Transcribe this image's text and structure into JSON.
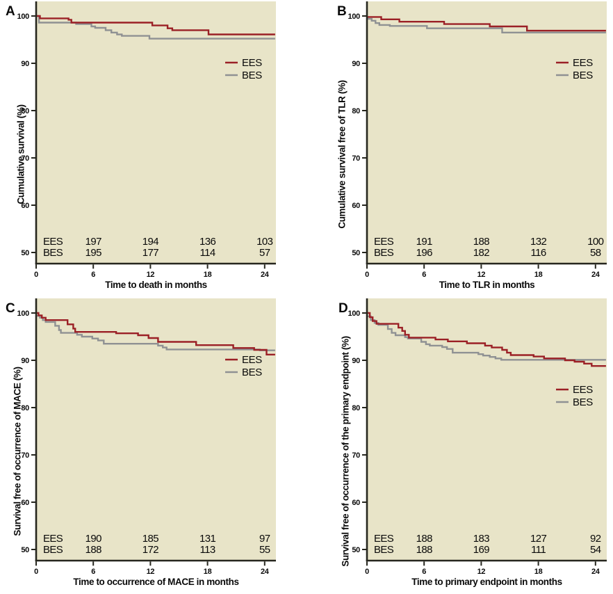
{
  "figure": {
    "background": "#FFFFFF",
    "plot_background": "#E8E4C8",
    "axis_color": "#26261E",
    "text_color": "#0A0A0A",
    "series_colors": {
      "EES": "#9B2026",
      "BES": "#8F9193"
    }
  },
  "chart_data": [
    {
      "type": "line",
      "panel_letter": "A",
      "ylabel": "Cumulative survival (%)",
      "xlabel": "Time to death in months",
      "x_ticks": [
        0,
        6,
        12,
        18,
        24
      ],
      "y_ticks": [
        50,
        60,
        70,
        80,
        90,
        100
      ],
      "xlim": [
        0,
        25.2
      ],
      "ylim": [
        47.6,
        103.1
      ],
      "step_mode": "after",
      "legend_position": "upper-right",
      "grid": false,
      "series": [
        {
          "name": "EES",
          "color": "#9B2026",
          "points": [
            [
              0,
              100
            ],
            [
              0.4,
              99.5
            ],
            [
              3.4,
              99.2
            ],
            [
              3.7,
              98.6
            ],
            [
              12.2,
              98.0
            ],
            [
              13.8,
              97.4
            ],
            [
              14.3,
              97.0
            ],
            [
              18.1,
              96.1
            ]
          ]
        },
        {
          "name": "BES",
          "color": "#8F9193",
          "points": [
            [
              0,
              100
            ],
            [
              0.3,
              98.6
            ],
            [
              4.2,
              98.3
            ],
            [
              5.8,
              97.8
            ],
            [
              6.2,
              97.5
            ],
            [
              7.3,
              97.0
            ],
            [
              7.9,
              96.5
            ],
            [
              8.5,
              96.1
            ],
            [
              9.0,
              95.8
            ],
            [
              11.9,
              95.2
            ]
          ]
        }
      ],
      "at_risk": {
        "time_points": [
          6,
          12,
          18,
          24
        ],
        "rows": [
          {
            "label": "EES",
            "values": [
              197,
              194,
              136,
              103
            ]
          },
          {
            "label": "BES",
            "values": [
              195,
              177,
              114,
              57
            ]
          }
        ]
      }
    },
    {
      "type": "line",
      "panel_letter": "B",
      "ylabel": "Cumulative survival free of TLR (%)",
      "xlabel": "Time to TLR in months",
      "x_ticks": [
        0,
        6,
        12,
        18,
        24
      ],
      "y_ticks": [
        50,
        60,
        70,
        80,
        90,
        100
      ],
      "xlim": [
        0,
        25.2
      ],
      "ylim": [
        47.6,
        103.1
      ],
      "step_mode": "after",
      "legend_position": "upper-right",
      "grid": false,
      "series": [
        {
          "name": "EES",
          "color": "#9B2026",
          "points": [
            [
              0,
              99.8
            ],
            [
              1.5,
              99.3
            ],
            [
              3.4,
              98.8
            ],
            [
              8.1,
              98.3
            ],
            [
              12.9,
              97.8
            ],
            [
              16.8,
              96.9
            ]
          ]
        },
        {
          "name": "BES",
          "color": "#8F9193",
          "points": [
            [
              0,
              99.4
            ],
            [
              0.5,
              99.0
            ],
            [
              0.9,
              98.5
            ],
            [
              1.3,
              98.1
            ],
            [
              2.4,
              97.9
            ],
            [
              6.3,
              97.4
            ],
            [
              14.2,
              96.5
            ]
          ]
        }
      ],
      "at_risk": {
        "time_points": [
          6,
          12,
          18,
          24
        ],
        "rows": [
          {
            "label": "EES",
            "values": [
              191,
              188,
              132,
              100
            ]
          },
          {
            "label": "BES",
            "values": [
              196,
              182,
              116,
              58
            ]
          }
        ]
      }
    },
    {
      "type": "line",
      "panel_letter": "C",
      "ylabel": "Survival free of occurrence of MACE (%)",
      "xlabel": "Time to occurrence of MACE in months",
      "x_ticks": [
        0,
        6,
        12,
        18,
        24
      ],
      "y_ticks": [
        50,
        60,
        70,
        80,
        90,
        100
      ],
      "xlim": [
        0,
        25.2
      ],
      "ylim": [
        47.6,
        103.1
      ],
      "step_mode": "after",
      "legend_position": "upper-right",
      "grid": false,
      "series": [
        {
          "name": "EES",
          "color": "#9B2026",
          "points": [
            [
              0,
              100
            ],
            [
              0.25,
              99.5
            ],
            [
              0.6,
              99.0
            ],
            [
              1.0,
              98.5
            ],
            [
              3.3,
              97.6
            ],
            [
              3.9,
              96.7
            ],
            [
              4.1,
              96.0
            ],
            [
              8.4,
              95.7
            ],
            [
              10.7,
              95.3
            ],
            [
              11.8,
              94.7
            ],
            [
              12.8,
              93.9
            ],
            [
              16.8,
              93.2
            ],
            [
              20.7,
              92.6
            ],
            [
              22.9,
              92.2
            ],
            [
              24.2,
              91.2
            ]
          ]
        },
        {
          "name": "BES",
          "color": "#8F9193",
          "points": [
            [
              0,
              99.4
            ],
            [
              0.4,
              99.0
            ],
            [
              0.7,
              98.5
            ],
            [
              1.0,
              98.1
            ],
            [
              2.0,
              97.3
            ],
            [
              2.4,
              96.4
            ],
            [
              2.6,
              95.8
            ],
            [
              4.3,
              95.4
            ],
            [
              4.8,
              95.0
            ],
            [
              5.9,
              94.6
            ],
            [
              6.5,
              94.2
            ],
            [
              7.1,
              93.5
            ],
            [
              12.8,
              93.1
            ],
            [
              13.3,
              92.7
            ],
            [
              13.7,
              92.3
            ],
            [
              23.5,
              92.1
            ]
          ]
        }
      ],
      "at_risk": {
        "time_points": [
          6,
          12,
          18,
          24
        ],
        "rows": [
          {
            "label": "EES",
            "values": [
              190,
              185,
              131,
              97
            ]
          },
          {
            "label": "BES",
            "values": [
              188,
              172,
              113,
              55
            ]
          }
        ]
      }
    },
    {
      "type": "line",
      "panel_letter": "D",
      "ylabel": "Survival free of occurrence of the primary endpoint (%)",
      "xlabel": "Time to primary endpoint in months",
      "x_ticks": [
        0,
        6,
        12,
        18,
        24
      ],
      "y_ticks": [
        50,
        60,
        70,
        80,
        90,
        100
      ],
      "xlim": [
        0,
        25.2
      ],
      "ylim": [
        47.6,
        103.1
      ],
      "step_mode": "after",
      "legend_position": "middle-right",
      "grid": false,
      "series": [
        {
          "name": "EES",
          "color": "#9B2026",
          "points": [
            [
              0,
              100
            ],
            [
              0.3,
              99.1
            ],
            [
              0.6,
              98.3
            ],
            [
              1.0,
              97.7
            ],
            [
              3.3,
              96.9
            ],
            [
              3.7,
              96.2
            ],
            [
              4.0,
              95.4
            ],
            [
              4.4,
              94.8
            ],
            [
              7.2,
              94.4
            ],
            [
              8.5,
              94.0
            ],
            [
              10.5,
              93.6
            ],
            [
              12.4,
              93.1
            ],
            [
              13.1,
              92.7
            ],
            [
              14.2,
              92.2
            ],
            [
              14.7,
              91.6
            ],
            [
              15.1,
              91.1
            ],
            [
              17.5,
              90.8
            ],
            [
              18.6,
              90.4
            ],
            [
              20.8,
              90.0
            ],
            [
              21.8,
              89.7
            ],
            [
              22.8,
              89.3
            ],
            [
              23.6,
              88.8
            ]
          ]
        },
        {
          "name": "BES",
          "color": "#8F9193",
          "points": [
            [
              0,
              99.3
            ],
            [
              0.4,
              98.5
            ],
            [
              0.8,
              97.9
            ],
            [
              1.2,
              97.5
            ],
            [
              2.2,
              96.6
            ],
            [
              2.6,
              95.8
            ],
            [
              3.0,
              95.3
            ],
            [
              4.0,
              94.9
            ],
            [
              4.3,
              94.6
            ],
            [
              5.7,
              93.9
            ],
            [
              6.2,
              93.4
            ],
            [
              6.6,
              93.1
            ],
            [
              7.9,
              92.8
            ],
            [
              8.4,
              92.4
            ],
            [
              9.0,
              91.6
            ],
            [
              11.7,
              91.3
            ],
            [
              12.2,
              91.0
            ],
            [
              12.9,
              90.7
            ],
            [
              13.5,
              90.4
            ],
            [
              14.1,
              90.1
            ]
          ]
        }
      ],
      "at_risk": {
        "time_points": [
          6,
          12,
          18,
          24
        ],
        "rows": [
          {
            "label": "EES",
            "values": [
              188,
              183,
              127,
              92
            ]
          },
          {
            "label": "BES",
            "values": [
              188,
              169,
              111,
              54
            ]
          }
        ]
      }
    }
  ]
}
